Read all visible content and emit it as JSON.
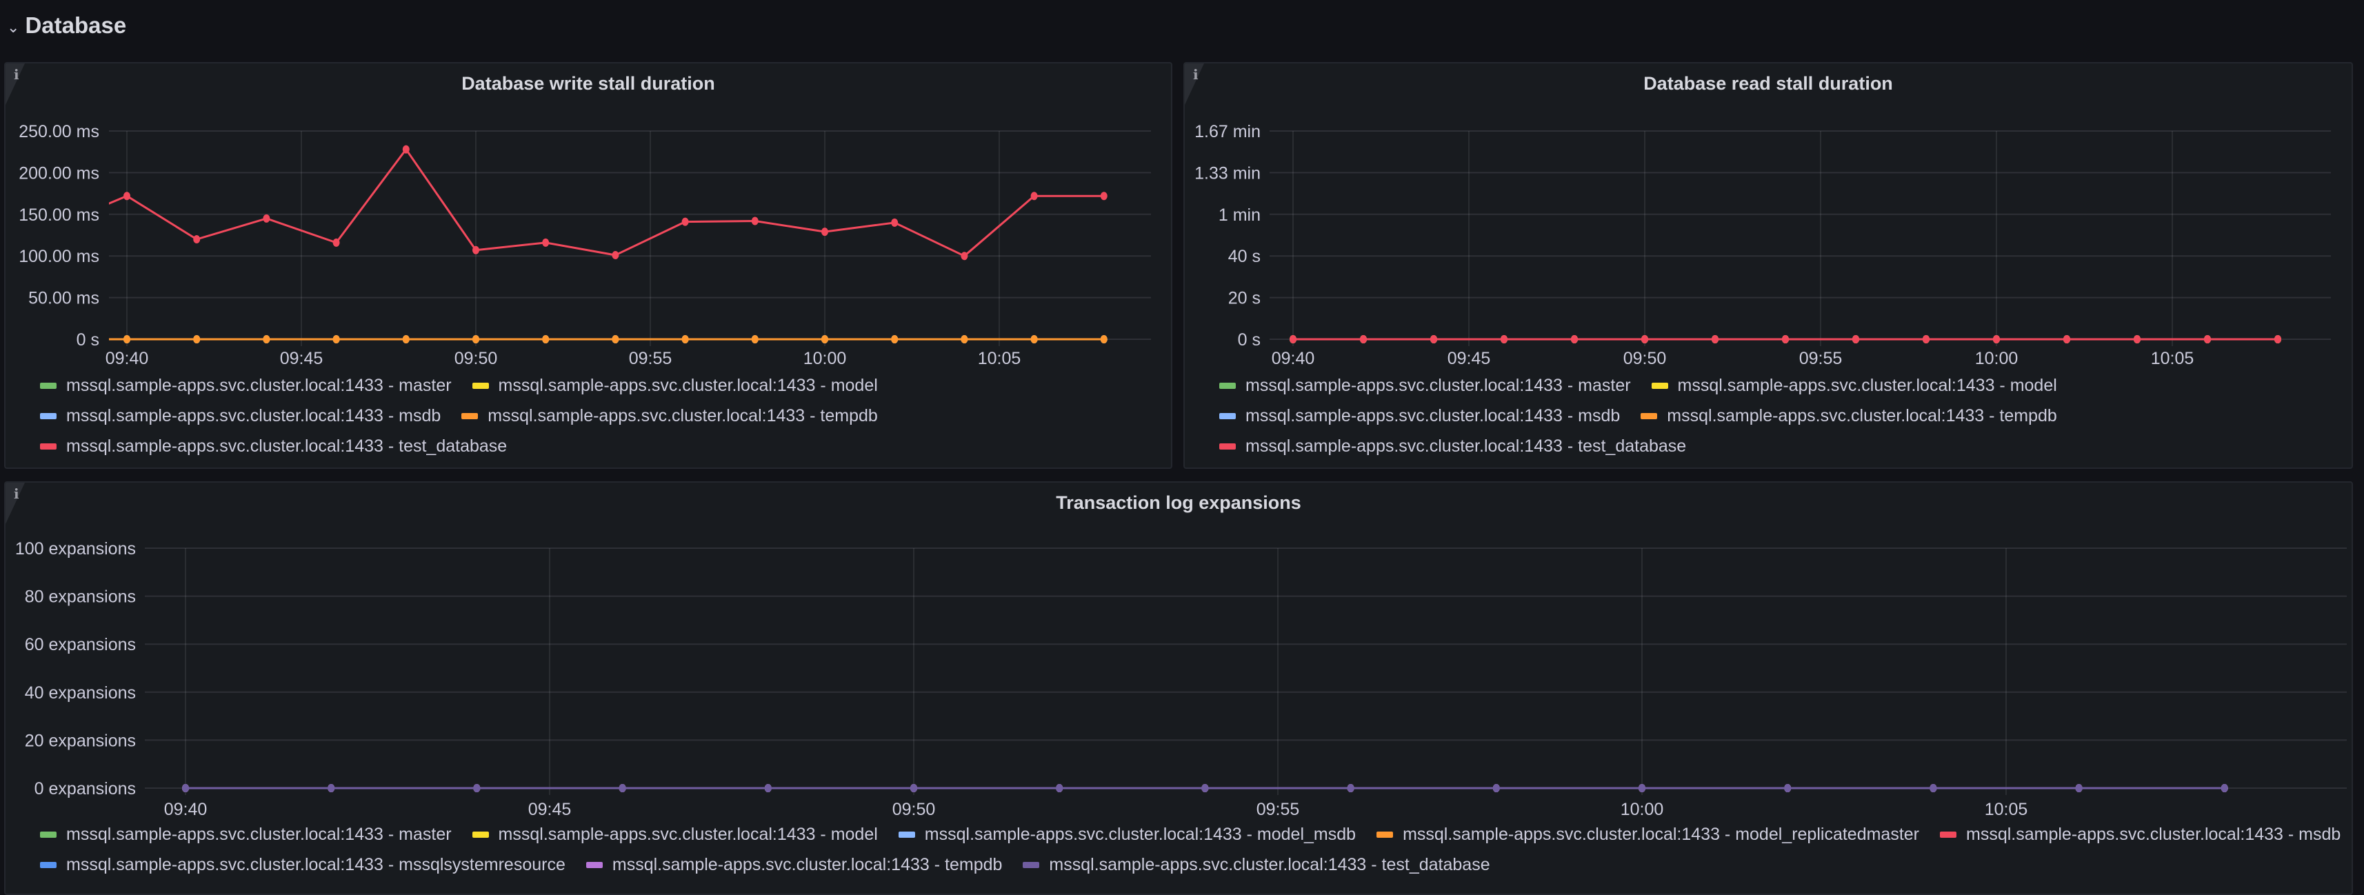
{
  "row": {
    "title": "Database",
    "chevron_icon": "chevron-down-icon"
  },
  "colors": {
    "master": "#73bf69",
    "model": "#fade2a",
    "msdb_light": "#8ab8ff",
    "tempdb_orange": "#ff9830",
    "red": "#f2495c",
    "blue": "#5794f2",
    "purple": "#b877d9",
    "dark_purple": "#705da0"
  },
  "panels": [
    {
      "title": "Database write stall duration",
      "info_icon": "info-icon",
      "chart_data": {
        "type": "line",
        "x": [
          "09:38",
          "09:40",
          "09:42",
          "09:44",
          "09:46",
          "09:48",
          "09:50",
          "09:52",
          "09:54",
          "09:56",
          "09:58",
          "10:00",
          "10:02",
          "10:04",
          "10:06",
          "10:08"
        ],
        "x_ticks": [
          "09:40",
          "09:45",
          "09:50",
          "09:55",
          "10:00",
          "10:05"
        ],
        "y_unit": "ms",
        "ylim": [
          0,
          250
        ],
        "y_ticks": [
          0,
          50,
          100,
          150,
          200,
          250
        ],
        "y_tick_labels": [
          "0 s",
          "50.00 ms",
          "100.00 ms",
          "150.00 ms",
          "200.00 ms",
          "250.00 ms"
        ],
        "grid": true,
        "legend_placement": "bottom",
        "series": [
          {
            "name": "mssql.sample-apps.svc.cluster.local:1433 - master",
            "color": "#73bf69",
            "values": [
              0,
              0,
              0,
              0,
              0,
              0,
              0,
              0,
              0,
              0,
              0,
              0,
              0,
              0,
              0,
              0
            ]
          },
          {
            "name": "mssql.sample-apps.svc.cluster.local:1433 - model",
            "color": "#fade2a",
            "values": [
              0,
              0,
              0,
              0,
              0,
              0,
              0,
              0,
              0,
              0,
              0,
              0,
              0,
              0,
              0,
              0
            ]
          },
          {
            "name": "mssql.sample-apps.svc.cluster.local:1433 - msdb",
            "color": "#8ab8ff",
            "values": [
              0,
              0,
              0,
              0,
              0,
              0,
              0,
              0,
              0,
              0,
              0,
              0,
              0,
              0,
              0,
              0
            ]
          },
          {
            "name": "mssql.sample-apps.svc.cluster.local:1433 - tempdb",
            "color": "#ff9830",
            "values": [
              0,
              0,
              0,
              0,
              0,
              0,
              0,
              0,
              0,
              0,
              0,
              0,
              0,
              0,
              0,
              0
            ],
            "top": true
          },
          {
            "name": "mssql.sample-apps.svc.cluster.local:1433 - test_database",
            "color": "#f2495c",
            "values": [
              137,
              172,
              120,
              145,
              116,
              228,
              107,
              116,
              101,
              141,
              142,
              129,
              140,
              100,
              172,
              172
            ]
          }
        ]
      }
    },
    {
      "title": "Database read stall duration",
      "info_icon": "info-icon",
      "chart_data": {
        "type": "line",
        "x": [
          "09:40",
          "09:42",
          "09:44",
          "09:46",
          "09:48",
          "09:50",
          "09:52",
          "09:54",
          "09:56",
          "09:58",
          "10:00",
          "10:02",
          "10:04",
          "10:06",
          "10:08"
        ],
        "x_ticks": [
          "09:40",
          "09:45",
          "09:50",
          "09:55",
          "10:00",
          "10:05"
        ],
        "y_unit": "s",
        "ylim": [
          0,
          100
        ],
        "y_ticks": [
          0,
          20,
          40,
          60,
          80,
          100
        ],
        "y_tick_labels": [
          "0 s",
          "20 s",
          "40 s",
          "1 min",
          "1.33 min",
          "1.67 min"
        ],
        "grid": true,
        "legend_placement": "bottom",
        "series": [
          {
            "name": "mssql.sample-apps.svc.cluster.local:1433 - master",
            "color": "#73bf69",
            "values": [
              0,
              0,
              0,
              0,
              0,
              0,
              0,
              0,
              0,
              0,
              0,
              0,
              0,
              0,
              0
            ]
          },
          {
            "name": "mssql.sample-apps.svc.cluster.local:1433 - model",
            "color": "#fade2a",
            "values": [
              0,
              0,
              0,
              0,
              0,
              0,
              0,
              0,
              0,
              0,
              0,
              0,
              0,
              0,
              0
            ]
          },
          {
            "name": "mssql.sample-apps.svc.cluster.local:1433 - msdb",
            "color": "#8ab8ff",
            "values": [
              0,
              0,
              0,
              0,
              0,
              0,
              0,
              0,
              0,
              0,
              0,
              0,
              0,
              0,
              0
            ]
          },
          {
            "name": "mssql.sample-apps.svc.cluster.local:1433 - tempdb",
            "color": "#ff9830",
            "values": [
              0,
              0,
              0,
              0,
              0,
              0,
              0,
              0,
              0,
              0,
              0,
              0,
              0,
              0,
              0
            ]
          },
          {
            "name": "mssql.sample-apps.svc.cluster.local:1433 - test_database",
            "color": "#f2495c",
            "values": [
              0,
              0,
              0,
              0,
              0,
              0,
              0,
              0,
              0,
              0,
              0,
              0,
              0,
              0,
              0
            ]
          }
        ]
      }
    },
    {
      "title": "Transaction log expansions",
      "info_icon": "info-icon",
      "chart_data": {
        "type": "line",
        "x": [
          "09:40",
          "09:42",
          "09:44",
          "09:46",
          "09:48",
          "09:50",
          "09:52",
          "09:54",
          "09:56",
          "09:58",
          "10:00",
          "10:02",
          "10:04",
          "10:06",
          "10:08"
        ],
        "x_ticks": [
          "09:40",
          "09:45",
          "09:50",
          "09:55",
          "10:00",
          "10:05"
        ],
        "y_unit": "expansions",
        "ylim": [
          0,
          100
        ],
        "y_ticks": [
          0,
          20,
          40,
          60,
          80,
          100
        ],
        "y_tick_labels": [
          "0 expansions",
          "20 expansions",
          "40 expansions",
          "60 expansions",
          "80 expansions",
          "100 expansions"
        ],
        "grid": true,
        "legend_placement": "bottom",
        "series": [
          {
            "name": "mssql.sample-apps.svc.cluster.local:1433 - master",
            "color": "#73bf69",
            "values": [
              0,
              0,
              0,
              0,
              0,
              0,
              0,
              0,
              0,
              0,
              0,
              0,
              0,
              0,
              0
            ]
          },
          {
            "name": "mssql.sample-apps.svc.cluster.local:1433 - model",
            "color": "#fade2a",
            "values": [
              0,
              0,
              0,
              0,
              0,
              0,
              0,
              0,
              0,
              0,
              0,
              0,
              0,
              0,
              0
            ]
          },
          {
            "name": "mssql.sample-apps.svc.cluster.local:1433 - model_msdb",
            "color": "#8ab8ff",
            "values": [
              0,
              0,
              0,
              0,
              0,
              0,
              0,
              0,
              0,
              0,
              0,
              0,
              0,
              0,
              0
            ]
          },
          {
            "name": "mssql.sample-apps.svc.cluster.local:1433 - model_replicatedmaster",
            "color": "#ff9830",
            "values": [
              0,
              0,
              0,
              0,
              0,
              0,
              0,
              0,
              0,
              0,
              0,
              0,
              0,
              0,
              0
            ]
          },
          {
            "name": "mssql.sample-apps.svc.cluster.local:1433 - msdb",
            "color": "#f2495c",
            "values": [
              0,
              0,
              0,
              0,
              0,
              0,
              0,
              0,
              0,
              0,
              0,
              0,
              0,
              0,
              0
            ]
          },
          {
            "name": "mssql.sample-apps.svc.cluster.local:1433 - mssqlsystemresource",
            "color": "#5794f2",
            "values": [
              0,
              0,
              0,
              0,
              0,
              0,
              0,
              0,
              0,
              0,
              0,
              0,
              0,
              0,
              0
            ]
          },
          {
            "name": "mssql.sample-apps.svc.cluster.local:1433 - tempdb",
            "color": "#b877d9",
            "values": [
              0,
              0,
              0,
              0,
              0,
              0,
              0,
              0,
              0,
              0,
              0,
              0,
              0,
              0,
              0
            ]
          },
          {
            "name": "mssql.sample-apps.svc.cluster.local:1433 - test_database",
            "color": "#705da0",
            "values": [
              0,
              0,
              0,
              0,
              0,
              0,
              0,
              0,
              0,
              0,
              0,
              0,
              0,
              0,
              0
            ]
          }
        ]
      }
    }
  ]
}
